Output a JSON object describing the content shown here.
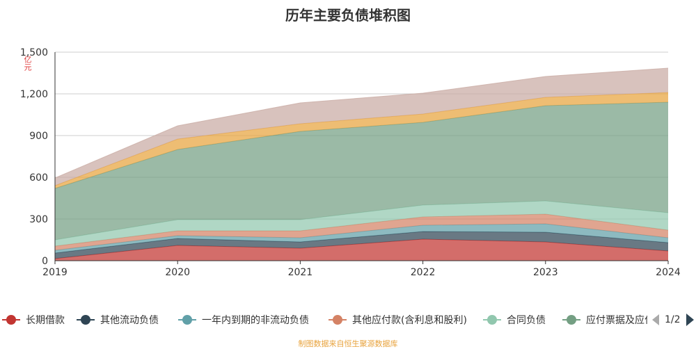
{
  "title": "历年主要负债堆积图",
  "unit_label": "亿元",
  "source": "制图数据来自恒生聚源数据库",
  "legend_page": "1/2",
  "chart_data": {
    "type": "area",
    "stacked": true,
    "title": "历年主要负债堆积图",
    "ylabel": "亿元",
    "x": [
      "2019",
      "2020",
      "2021",
      "2022",
      "2023",
      "2024"
    ],
    "ylim": [
      0,
      1500
    ],
    "yticks": [
      "0",
      "300",
      "600",
      "900",
      "1,200",
      "1,500"
    ],
    "grid": true,
    "legend_position": "bottom",
    "series": [
      {
        "name": "长期借款",
        "color": "#c23531",
        "values": [
          15,
          110,
          90,
          155,
          135,
          70
        ]
      },
      {
        "name": "其他流动负债",
        "color": "#2f4554",
        "values": [
          40,
          50,
          45,
          55,
          70,
          60
        ]
      },
      {
        "name": "一年内到期的非流动负债",
        "color": "#61a0a8",
        "values": [
          20,
          20,
          30,
          45,
          60,
          35
        ]
      },
      {
        "name": "其他应付款(含利息和股利)",
        "color": "#d48265",
        "values": [
          30,
          35,
          50,
          60,
          70,
          55
        ]
      },
      {
        "name": "合同负债",
        "color": "#91c7ae",
        "values": [
          45,
          80,
          80,
          85,
          95,
          125
        ]
      },
      {
        "name": "应付票据及应付账款",
        "color": "#749f83",
        "values": [
          370,
          505,
          635,
          595,
          685,
          795
        ]
      },
      {
        "name": "",
        "color": "#e8a33d",
        "values": [
          20,
          75,
          55,
          60,
          60,
          70
        ]
      },
      {
        "name": "",
        "color": "#c9aba4",
        "values": [
          55,
          95,
          150,
          150,
          150,
          175
        ]
      }
    ]
  }
}
